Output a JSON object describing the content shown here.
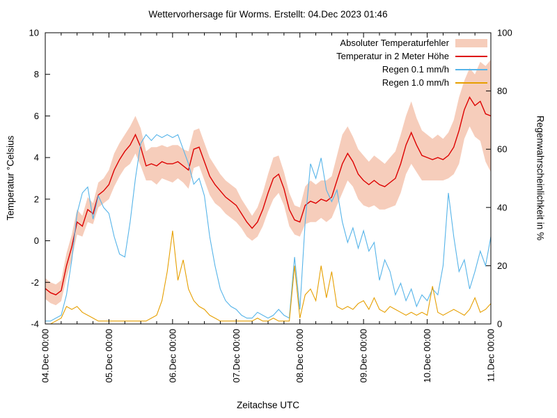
{
  "title": "Wettervorhersage für Worms. Erstellt: 04.Dec 2023 01:46",
  "axes": {
    "y_left_label": "Temperatur °Celsius",
    "y_right_label": "Regenwahrscheinlichkeit in %",
    "x_label": "Zeitachse UTC",
    "y_left_ticks": [
      -4,
      -2,
      0,
      2,
      4,
      6,
      8,
      10
    ],
    "y_left_range": [
      -4,
      10
    ],
    "y_right_ticks": [
      0,
      20,
      40,
      60,
      80,
      100
    ],
    "y_right_range": [
      0,
      100
    ],
    "x_tick_labels": [
      "04.Dec 00:00",
      "05.Dec 00:00",
      "06.Dec 00:00",
      "07.Dec 00:00",
      "08.Dec 00:00",
      "09.Dec 00:00",
      "10.Dec 00:00",
      "11.Dec 00:00"
    ],
    "x_minor_tick_hours": 6,
    "grid": false
  },
  "legend": [
    {
      "label": "Absoluter Temperaturfehler"
    },
    {
      "label": "Temperatur in 2 Meter Höhe"
    },
    {
      "label": "Regen 0.1 mm/h"
    },
    {
      "label": "Regen 1.0 mm/h"
    }
  ],
  "chart_data": {
    "type": "line",
    "x_unit": "hours since 04.Dec 00:00 UTC",
    "x_step_hours": 2,
    "x_range_hours": [
      0,
      168
    ],
    "series": [
      {
        "name": "Absoluter Temperaturfehler",
        "render": "band",
        "axis": "left",
        "color": "#e77c4d",
        "opacity": 0.38,
        "around": "Temperatur in 2 Meter Höhe",
        "half_width": [
          0.5,
          0.5,
          0.5,
          0.5,
          0.6,
          0.6,
          0.6,
          0.5,
          0.6,
          0.5,
          0.6,
          0.6,
          0.7,
          0.8,
          0.8,
          0.8,
          0.9,
          0.9,
          0.9,
          0.7,
          0.8,
          0.9,
          0.8,
          0.8,
          0.9,
          0.8,
          0.8,
          0.9,
          0.9,
          0.9,
          0.9,
          0.9,
          0.9,
          0.8,
          0.8,
          0.8,
          0.8,
          0.7,
          0.7,
          0.6,
          0.7,
          0.8,
          0.9,
          1.0,
          0.9,
          0.8,
          0.8,
          0.7,
          0.7,
          0.9,
          1.0,
          0.9,
          0.9,
          1.0,
          1.0,
          1.2,
          1.4,
          1.3,
          1.2,
          1.2,
          1.2,
          1.1,
          1.2,
          1.2,
          1.1,
          1.2,
          1.3,
          1.4,
          1.4,
          1.5,
          1.3,
          1.2,
          1.1,
          1.0,
          1.1,
          1.0,
          1.1,
          1.3,
          1.6,
          1.4,
          1.4,
          1.5,
          1.9,
          2.3,
          2.7
        ]
      },
      {
        "name": "Temperatur in 2 Meter Höhe",
        "render": "line",
        "axis": "left",
        "color": "#dd0000",
        "values": [
          -2.3,
          -2.5,
          -2.6,
          -2.4,
          -1.2,
          -0.3,
          0.9,
          0.7,
          1.5,
          1.3,
          2.2,
          2.4,
          2.7,
          3.4,
          3.9,
          4.3,
          4.6,
          5.1,
          4.5,
          3.6,
          3.7,
          3.6,
          3.8,
          3.7,
          3.7,
          3.8,
          3.6,
          3.4,
          4.4,
          4.5,
          3.8,
          3.1,
          2.7,
          2.4,
          2.1,
          1.9,
          1.7,
          1.3,
          0.9,
          0.6,
          0.9,
          1.5,
          2.3,
          3.0,
          3.2,
          2.5,
          1.5,
          1.0,
          0.9,
          1.7,
          1.9,
          1.8,
          2.0,
          1.9,
          2.1,
          2.9,
          3.7,
          4.2,
          3.8,
          3.2,
          2.9,
          2.7,
          2.9,
          2.7,
          2.6,
          2.8,
          3.0,
          3.7,
          4.6,
          5.2,
          4.6,
          4.1,
          4.0,
          3.9,
          4.0,
          3.9,
          4.1,
          4.5,
          5.3,
          6.3,
          6.9,
          6.5,
          6.7,
          6.1,
          6.0
        ]
      },
      {
        "name": "Regen 0.1 mm/h",
        "render": "line",
        "axis": "right",
        "color": "#56b4e9",
        "values": [
          1,
          1,
          2,
          3,
          10,
          22,
          38,
          45,
          47,
          36,
          44,
          40,
          38,
          30,
          24,
          23,
          35,
          50,
          62,
          65,
          63,
          65,
          64,
          65,
          64,
          65,
          60,
          55,
          48,
          50,
          44,
          30,
          20,
          12,
          8,
          6,
          5,
          3,
          2,
          2,
          4,
          3,
          2,
          3,
          5,
          3,
          2,
          23,
          5,
          35,
          55,
          50,
          57,
          46,
          42,
          46,
          35,
          28,
          33,
          26,
          32,
          25,
          28,
          15,
          22,
          18,
          10,
          14,
          8,
          12,
          6,
          10,
          8,
          12,
          10,
          20,
          45,
          30,
          18,
          22,
          12,
          18,
          25,
          20,
          30
        ]
      },
      {
        "name": "Regen 1.0 mm/h",
        "render": "line",
        "axis": "right",
        "color": "#e69f00",
        "values": [
          0,
          0,
          1,
          2,
          6,
          5,
          6,
          4,
          3,
          2,
          1,
          1,
          1,
          1,
          1,
          1,
          1,
          1,
          1,
          1,
          2,
          3,
          8,
          18,
          32,
          15,
          22,
          12,
          8,
          6,
          5,
          3,
          2,
          1,
          1,
          1,
          1,
          1,
          1,
          1,
          2,
          1,
          1,
          2,
          1,
          1,
          1,
          20,
          2,
          10,
          12,
          8,
          20,
          9,
          18,
          6,
          5,
          6,
          5,
          7,
          8,
          5,
          9,
          5,
          4,
          6,
          5,
          4,
          3,
          4,
          3,
          4,
          3,
          13,
          4,
          3,
          4,
          5,
          4,
          3,
          5,
          9,
          4,
          5,
          7
        ]
      }
    ]
  }
}
